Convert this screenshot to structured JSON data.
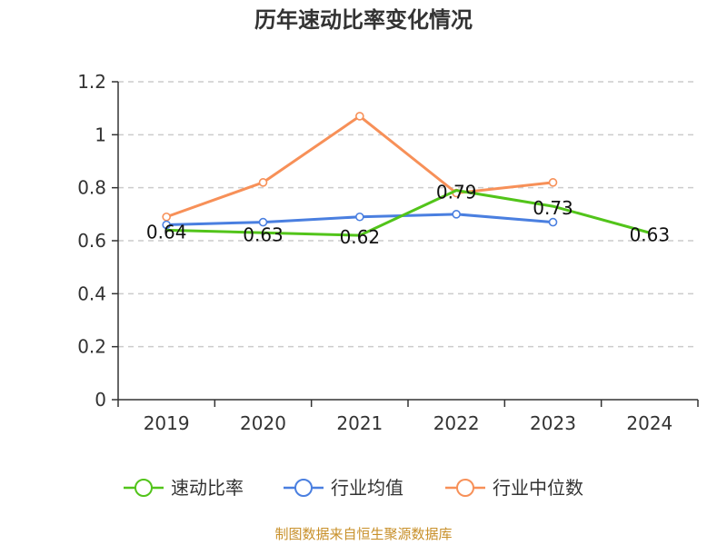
{
  "chart_data": {
    "type": "line",
    "title": "历年速动比率变化情况",
    "categories": [
      "2019",
      "2020",
      "2021",
      "2022",
      "2023",
      "2024"
    ],
    "ylim": [
      0,
      1.2
    ],
    "yticks": [
      "0",
      "0.2",
      "0.4",
      "0.6",
      "0.8",
      "1",
      "1.2"
    ],
    "grid": true,
    "legend_position": "bottom",
    "series": [
      {
        "name": "速动比率",
        "color": "#52c41a",
        "values": [
          0.64,
          0.63,
          0.62,
          0.79,
          0.73,
          0.63
        ],
        "labels": [
          "0.64",
          "0.63",
          "0.62",
          "0.79",
          "0.73",
          "0.63"
        ]
      },
      {
        "name": "行业均值",
        "color": "#4a7fe0",
        "values": [
          0.66,
          0.67,
          0.69,
          0.7,
          0.67,
          null
        ]
      },
      {
        "name": "行业中位数",
        "color": "#f79058",
        "values": [
          0.69,
          0.82,
          1.07,
          0.78,
          0.82,
          null
        ]
      }
    ]
  },
  "source": {
    "text": "制图数据来自恒生聚源数据库",
    "color": "#c8902a"
  }
}
